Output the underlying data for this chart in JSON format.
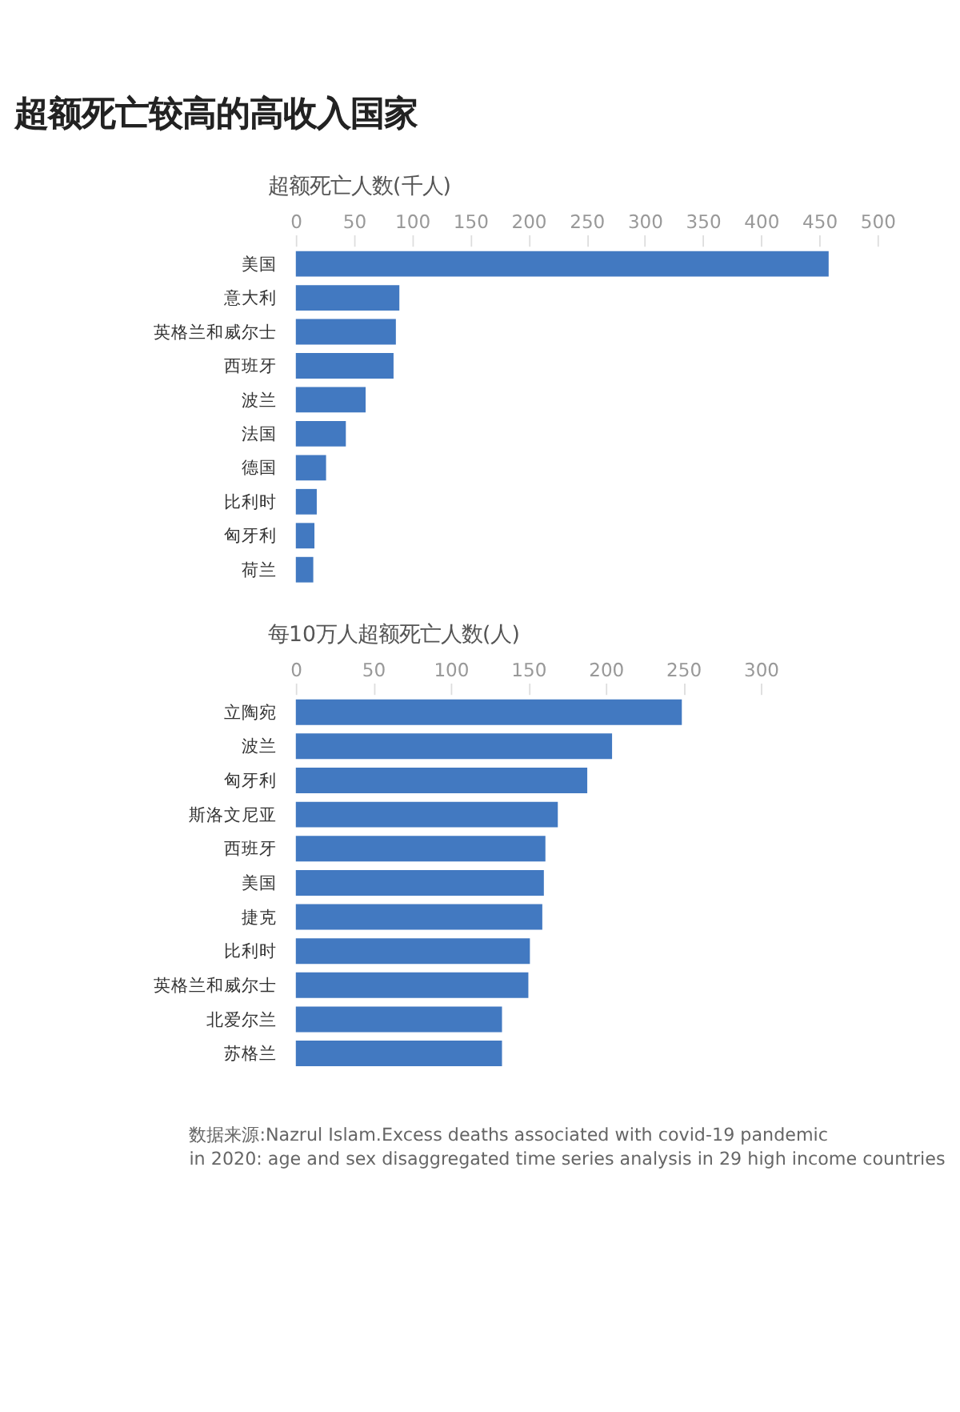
{
  "chart_data": [
    {
      "type": "bar",
      "orientation": "horizontal",
      "title": "超额死亡较高的高收入国家",
      "xlabel": "超额死亡人数(千人)",
      "categories": [
        "美国",
        "意大利",
        "英格兰和威尔士",
        "西班牙",
        "波兰",
        "法国",
        "德国",
        "比利时",
        "匈牙利",
        "荷兰"
      ],
      "values": [
        458,
        89,
        86,
        84,
        60,
        43,
        26,
        18,
        16,
        15
      ],
      "color": "#4279c1",
      "xlim": [
        0,
        500
      ],
      "xticks": [
        0,
        50,
        100,
        150,
        200,
        250,
        300,
        350,
        400,
        450,
        500
      ],
      "grid": false
    },
    {
      "type": "bar",
      "orientation": "horizontal",
      "xlabel": "每10万人超额死亡人数(人)",
      "categories": [
        "立陶宛",
        "波兰",
        "匈牙利",
        "斯洛文尼亚",
        "西班牙",
        "美国",
        "捷克",
        "比利时",
        "英格兰和威尔士",
        "北爱尔兰",
        "苏格兰"
      ],
      "values": [
        249,
        204,
        188,
        169,
        161,
        160,
        159,
        151,
        150,
        133,
        133
      ],
      "color": "#4279c1",
      "xlim": [
        0,
        300
      ],
      "xticks": [
        0,
        50,
        100,
        150,
        200,
        250,
        300
      ],
      "grid": false,
      "annotations": [
        "数据来源:Nazrul Islam.Excess deaths associated with covid-19 pandemic",
        "in 2020: age and sex disaggregated time series analysis in 29 high income countries"
      ]
    }
  ]
}
